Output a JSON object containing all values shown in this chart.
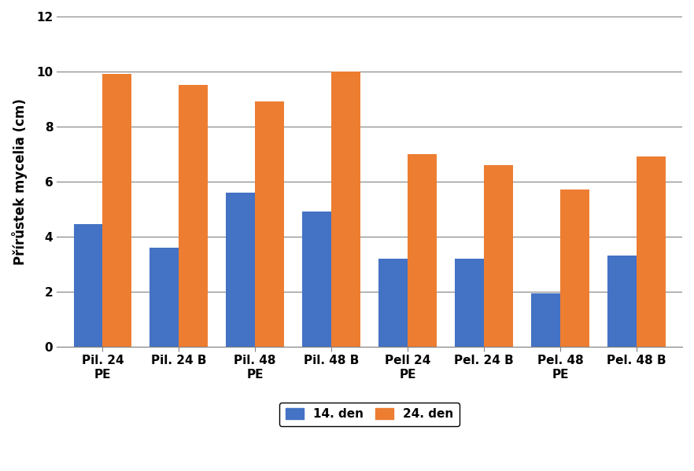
{
  "categories": [
    "Pil. 24\nPE",
    "Pil. 24 B",
    "Pil. 48\nPE",
    "Pil. 48 B",
    "Pell 24\nPE",
    "Pel. 24 B",
    "Pel. 48\nPE",
    "Pel. 48 B"
  ],
  "series": [
    {
      "label": "14. den",
      "color": "#4472C4",
      "values": [
        4.45,
        3.6,
        5.6,
        4.9,
        3.2,
        3.2,
        1.95,
        3.3
      ]
    },
    {
      "label": "24. den",
      "color": "#ED7D31",
      "values": [
        9.9,
        9.5,
        8.9,
        10.0,
        7.0,
        6.6,
        5.7,
        6.9
      ]
    }
  ],
  "ylabel": "Přírůstek mycelia (cm)",
  "ylim": [
    0,
    12
  ],
  "yticks": [
    0,
    2,
    4,
    6,
    8,
    10,
    12
  ],
  "bar_width": 0.38,
  "background_color": "#ffffff",
  "grid_color": "#808080",
  "tick_fontsize": 11,
  "ylabel_fontsize": 12,
  "legend_fontsize": 11
}
